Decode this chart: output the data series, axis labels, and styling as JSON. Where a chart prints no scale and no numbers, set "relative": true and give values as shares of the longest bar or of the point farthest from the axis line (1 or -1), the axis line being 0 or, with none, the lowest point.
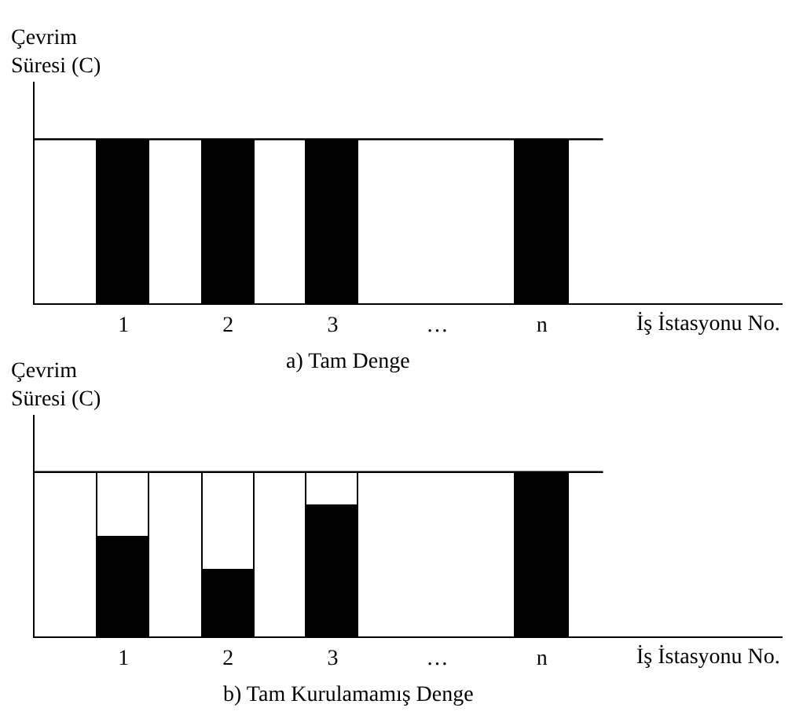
{
  "chart_data": [
    {
      "type": "bar",
      "stacked": true,
      "relative": true,
      "title": "a) Tam Denge",
      "xlabel": "İş İstasyonu No.",
      "ylabel": "Çevrim\nSüresi (C)",
      "categories": [
        "1",
        "2",
        "3",
        "…",
        "n"
      ],
      "series": [
        {
          "color": "#000000",
          "values": [
            1,
            1,
            1,
            null,
            1
          ]
        }
      ],
      "ref_lines": [
        {
          "axis": "y",
          "value": 1,
          "color": "#000000"
        }
      ]
    },
    {
      "type": "bar",
      "stacked": true,
      "relative": true,
      "title": "b) Tam Kurulamamış Denge",
      "xlabel": "İş İstasyonu No.",
      "ylabel": "Çevrim\nSüresi (C)",
      "categories": [
        "1",
        "2",
        "3",
        "…",
        "n"
      ],
      "series": [
        {
          "color": "#000000",
          "values": [
            0.6,
            0.4,
            0.8,
            null,
            1
          ]
        },
        {
          "color": "#ffffff",
          "values": [
            0.4,
            0.6,
            0.2,
            null,
            null
          ]
        }
      ],
      "ref_lines": [
        {
          "axis": "y",
          "value": 1,
          "color": "#000000"
        }
      ]
    }
  ]
}
